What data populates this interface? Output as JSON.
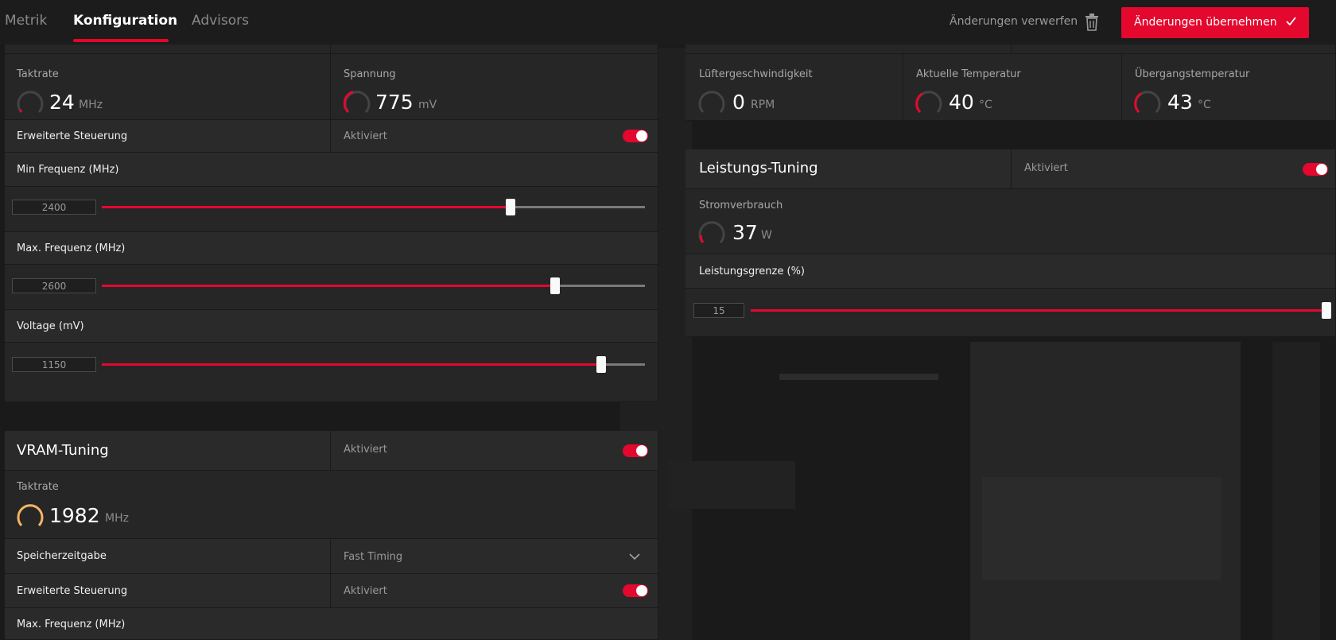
{
  "tabs": [
    {
      "label": "Metrik"
    },
    {
      "label": "Konfiguration"
    },
    {
      "label": "Advisors"
    }
  ],
  "actions": {
    "discard_label": "Änderungen verwerfen",
    "apply_label": "Änderungen übernehmen"
  },
  "colors": {
    "accent": "#e4082e",
    "gauge_warm": "#f5b466"
  },
  "gpu": {
    "clock": {
      "label": "Taktrate",
      "value": "24",
      "unit": "MHz"
    },
    "voltage": {
      "label": "Spannung",
      "value": "775",
      "unit": "mV"
    },
    "advanced": {
      "label": "Erweiterte Steuerung",
      "state": "Aktiviert",
      "enabled": true
    },
    "min_freq": {
      "label": "Min Frequenz (MHz)",
      "value": "2400",
      "fraction": 0.753
    },
    "max_freq": {
      "label": "Max. Frequenz (MHz)",
      "value": "2600",
      "fraction": 0.835
    },
    "voltage_mv": {
      "label": "Voltage (mV)",
      "value": "1150",
      "fraction": 0.92
    }
  },
  "fan": {
    "fan_speed": {
      "label": "Lüftergeschwindigkeit",
      "value": "0",
      "unit": "RPM"
    },
    "current_temp": {
      "label": "Aktuelle Temperatur",
      "value": "40",
      "unit": "°C"
    },
    "junction_temp": {
      "label": "Übergangstemperatur",
      "value": "43",
      "unit": "°C"
    }
  },
  "power": {
    "title": "Leistungs-Tuning",
    "state": "Aktiviert",
    "enabled": true,
    "consumption": {
      "label": "Stromverbrauch",
      "value": "37",
      "unit": "W"
    },
    "limit": {
      "label": "Leistungsgrenze (%)",
      "value": "15",
      "fraction": 1.0
    }
  },
  "vram": {
    "title": "VRAM-Tuning",
    "state": "Aktiviert",
    "enabled": true,
    "clock": {
      "label": "Taktrate",
      "value": "1982",
      "unit": "MHz"
    },
    "timing": {
      "label": "Speicherzeitgabe",
      "value": "Fast Timing"
    },
    "advanced": {
      "label": "Erweiterte Steuerung",
      "state": "Aktiviert",
      "enabled": true
    },
    "max_freq": {
      "label": "Max. Frequenz (MHz)"
    }
  }
}
